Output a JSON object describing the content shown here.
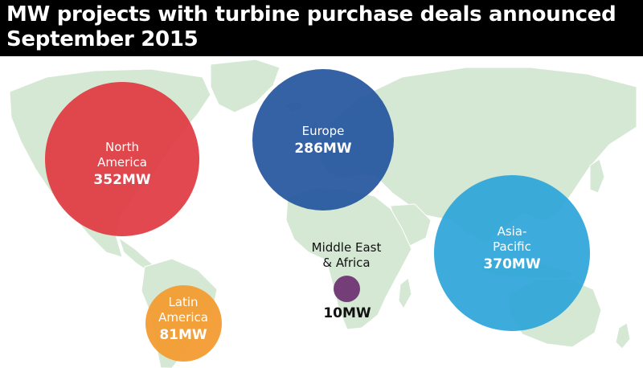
{
  "title": {
    "line1": "MW projects with turbine purchase deals announced",
    "line2": "September 2015"
  },
  "colors": {
    "land": "#d5e8d4",
    "north_america": "#e03a42",
    "europe": "#25569e",
    "asia_pacific": "#2ea6d9",
    "latin_america": "#f39a2e",
    "middle_east_africa": "#6d3271"
  },
  "regions": [
    {
      "id": "north_america",
      "name_line1": "North",
      "name_line2": "America",
      "value_label": "352MW",
      "mw": 352
    },
    {
      "id": "europe",
      "name_line1": "Europe",
      "name_line2": "",
      "value_label": "286MW",
      "mw": 286
    },
    {
      "id": "asia_pacific",
      "name_line1": "Asia-",
      "name_line2": "Pacific",
      "value_label": "370MW",
      "mw": 370
    },
    {
      "id": "latin_america",
      "name_line1": "Latin",
      "name_line2": "America",
      "value_label": "81MW",
      "mw": 81
    },
    {
      "id": "middle_east_africa",
      "name_line1": "Middle East",
      "name_line2": "& Africa",
      "value_label": "10MW",
      "mw": 10
    }
  ]
}
